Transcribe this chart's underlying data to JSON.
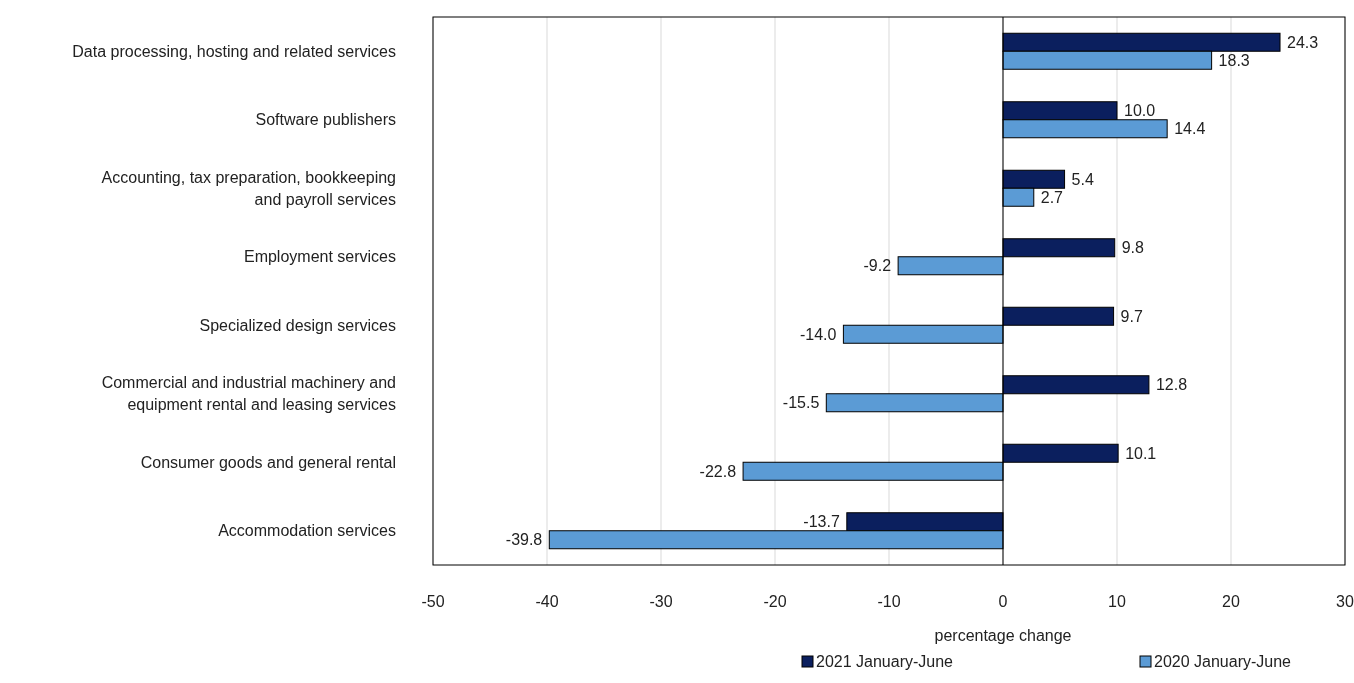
{
  "chart_data": {
    "type": "bar",
    "orientation": "horizontal",
    "xlabel": "percentage change",
    "categories": [
      "Data processing, hosting and related services",
      "Software publishers",
      "Accounting, tax preparation, bookkeeping and payroll services",
      "Employment services",
      "Specialized design services",
      "Commercial and industrial machinery and equipment rental and leasing services",
      "Consumer goods and general rental",
      "Accommodation services"
    ],
    "series": [
      {
        "name": "2021 January-June",
        "color": "#0b1f5e",
        "values": [
          24.3,
          10.0,
          5.4,
          9.8,
          9.7,
          12.8,
          10.1,
          -13.7
        ]
      },
      {
        "name": "2020 January-June",
        "color": "#5b9bd5",
        "values": [
          18.3,
          14.4,
          2.7,
          -9.2,
          -14.0,
          -15.5,
          -22.8,
          -39.8
        ]
      }
    ],
    "value_labels": [
      [
        "24.3",
        "10.0",
        "5.4",
        "9.8",
        "9.7",
        "12.8",
        "10.1",
        "-13.7"
      ],
      [
        "18.3",
        "14.4",
        "2.7",
        "-9.2",
        "-14.0",
        "-15.5",
        "-22.8",
        "-39.8"
      ]
    ],
    "xlim": [
      -50,
      30
    ],
    "xticks": [
      -50,
      -40,
      -30,
      -20,
      -10,
      0,
      10,
      20,
      30
    ],
    "grid": "x",
    "legend": "bottom"
  }
}
